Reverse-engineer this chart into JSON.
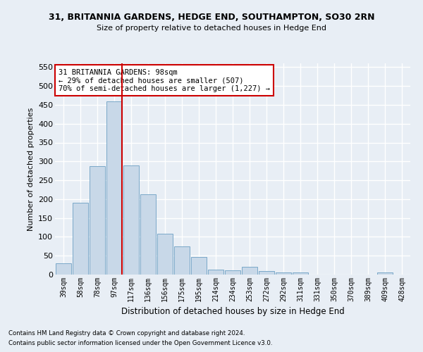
{
  "title": "31, BRITANNIA GARDENS, HEDGE END, SOUTHAMPTON, SO30 2RN",
  "subtitle": "Size of property relative to detached houses in Hedge End",
  "xlabel": "Distribution of detached houses by size in Hedge End",
  "ylabel": "Number of detached properties",
  "bar_color": "#c8d8e8",
  "bar_edge_color": "#7aa8c8",
  "background_color": "#e8eef5",
  "fig_background_color": "#e8eef5",
  "grid_color": "#ffffff",
  "categories": [
    "39sqm",
    "58sqm",
    "78sqm",
    "97sqm",
    "117sqm",
    "136sqm",
    "156sqm",
    "175sqm",
    "195sqm",
    "214sqm",
    "234sqm",
    "253sqm",
    "272sqm",
    "292sqm",
    "311sqm",
    "331sqm",
    "350sqm",
    "370sqm",
    "389sqm",
    "409sqm",
    "428sqm"
  ],
  "values": [
    30,
    190,
    287,
    460,
    290,
    212,
    108,
    74,
    46,
    13,
    11,
    21,
    9,
    5,
    5,
    0,
    0,
    0,
    0,
    5,
    0
  ],
  "ylim": [
    0,
    560
  ],
  "yticks": [
    0,
    50,
    100,
    150,
    200,
    250,
    300,
    350,
    400,
    450,
    500,
    550
  ],
  "annotation_text": "31 BRITANNIA GARDENS: 98sqm\n← 29% of detached houses are smaller (507)\n70% of semi-detached houses are larger (1,227) →",
  "annotation_box_color": "#ffffff",
  "annotation_box_edge": "#cc0000",
  "property_line_color": "#cc0000",
  "property_line_index": 3,
  "footnote1": "Contains HM Land Registry data © Crown copyright and database right 2024.",
  "footnote2": "Contains public sector information licensed under the Open Government Licence v3.0."
}
